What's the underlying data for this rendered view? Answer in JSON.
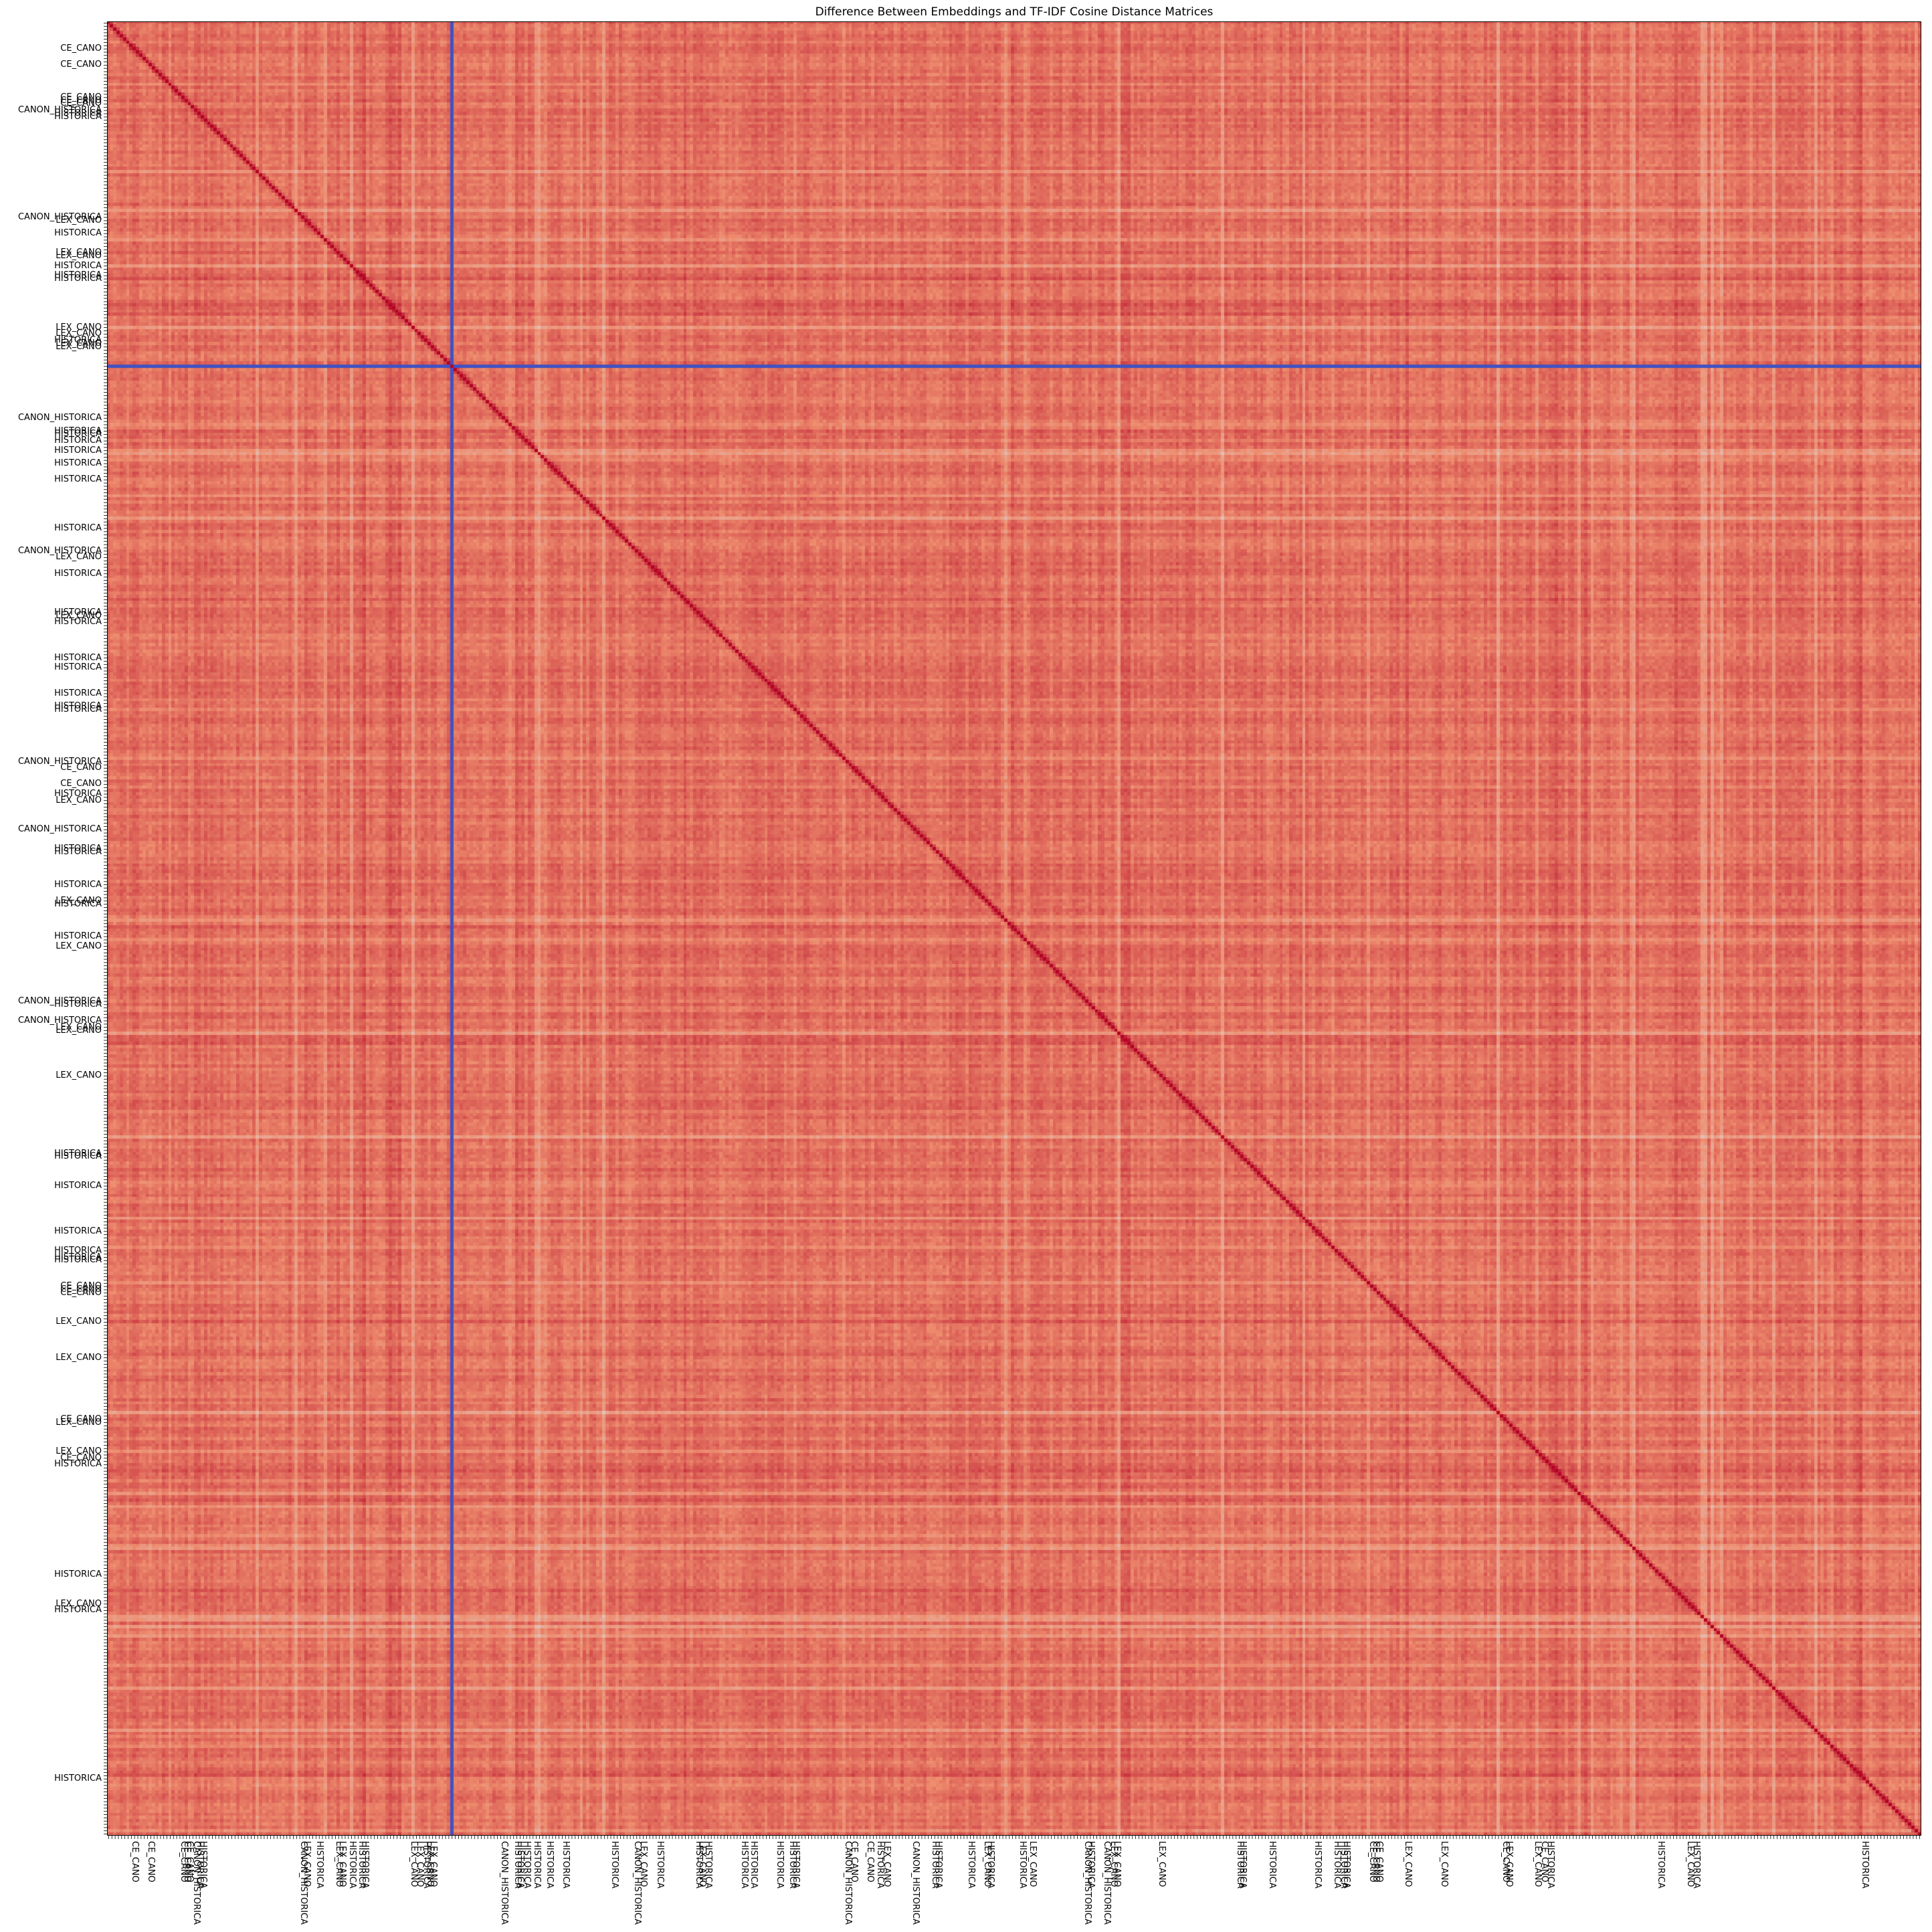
{
  "chart_data": {
    "type": "heatmap",
    "title": "Difference Between Embeddings and TF-IDF Cosine Distance Matrices",
    "xlabel": "",
    "ylabel": "",
    "n": 560,
    "colormap": "coolwarm",
    "colors": {
      "low": "#3b4cc0",
      "mid": "#dddddd",
      "high": "#b40426",
      "base": "#e8735f"
    },
    "grid": false,
    "highlight": {
      "index": 106,
      "color": "#3b4cc0"
    },
    "tick_labels": [
      "CE_CANO",
      "CE_CANO",
      "CE_CANO",
      "CE_CANO",
      "CE_CANO",
      "CANON_HISTORICA",
      "HISTORICA",
      "HISTORICA",
      "CANON_HISTORICA",
      "LEX_CANO",
      "HISTORICA",
      "LEX_CANO",
      "LEX_CANO",
      "HISTORICA",
      "HISTORICA",
      "HISTORICA",
      "LEX_CANO",
      "LEX_CANO",
      "HISTORICA",
      "LEX_CANO",
      "LEX_CANO",
      "CANON_HISTORICA",
      "HISTORICA",
      "HISTORICA",
      "HISTORICA",
      "HISTORICA",
      "HISTORICA",
      "HISTORICA",
      "HISTORICA",
      "CANON_HISTORICA",
      "LEX_CANO",
      "HISTORICA",
      "HISTORICA",
      "LEX_CANO",
      "HISTORICA",
      "HISTORICA",
      "HISTORICA",
      "HISTORICA",
      "HISTORICA",
      "HISTORICA",
      "CANON_HISTORICA",
      "CE_CANO",
      "CE_CANO",
      "HISTORICA",
      "LEX_CANO",
      "CANON_HISTORICA",
      "HISTORICA",
      "HISTORICA",
      "HISTORICA",
      "LEX_CANO",
      "HISTORICA",
      "HISTORICA",
      "LEX_CANO",
      "CANON_HISTORICA",
      "HISTORICA",
      "CANON_HISTORICA",
      "LEX_CANO",
      "LEX_CANO",
      "LEX_CANO",
      "HISTORICA",
      "HISTORICA",
      "HISTORICA",
      "HISTORICA",
      "HISTORICA",
      "HISTORICA",
      "HISTORICA",
      "CE_CANO",
      "CE_CANO",
      "CE_CANO",
      "LEX_CANO",
      "LEX_CANO",
      "CE_CANO",
      "LEX_CANO",
      "LEX_CANO",
      "CE_CANO",
      "HISTORICA",
      "HISTORICA",
      "LEX_CANO",
      "HISTORICA",
      "HISTORICA"
    ],
    "tick_positions": [
      8,
      13,
      23,
      24,
      25,
      27,
      28,
      29,
      60,
      61,
      65,
      71,
      72,
      75,
      78,
      79,
      94,
      96,
      98,
      99,
      100,
      122,
      126,
      127,
      129,
      132,
      136,
      141,
      156,
      163,
      165,
      170,
      182,
      183,
      185,
      196,
      199,
      207,
      211,
      212,
      228,
      230,
      235,
      238,
      240,
      249,
      255,
      256,
      266,
      271,
      272,
      282,
      285,
      302,
      303,
      308,
      310,
      311,
      325,
      349,
      350,
      359,
      373,
      379,
      381,
      382,
      390,
      391,
      392,
      401,
      412,
      431,
      432,
      441,
      443,
      445,
      479,
      488,
      490,
      542
    ]
  }
}
